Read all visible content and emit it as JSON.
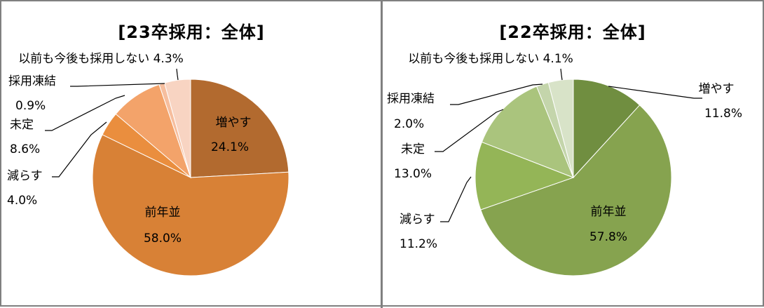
{
  "chart_data": [
    {
      "type": "pie",
      "title": "[23卒採用：全体]",
      "categories": [
        "増やす",
        "前年並",
        "減らす",
        "未定",
        "採用凍結",
        "以前も今後も採用しない"
      ],
      "values": [
        24.1,
        58.0,
        4.0,
        8.6,
        0.9,
        4.3
      ],
      "value_labels": [
        "24.1%",
        "58.0%",
        "4.0%",
        "8.6%",
        "0.9%",
        "4.3%"
      ],
      "colors": [
        "#B26A2F",
        "#D88136",
        "#EA8E3E",
        "#F3A36A",
        "#F6BE9E",
        "#F8D4C2"
      ],
      "legend": "none"
    },
    {
      "type": "pie",
      "title": "[22卒採用：全体]",
      "categories": [
        "増やす",
        "前年並",
        "減らす",
        "未定",
        "採用凍結",
        "以前も今後も採用しない"
      ],
      "values": [
        11.8,
        57.8,
        11.2,
        13.0,
        2.0,
        4.1
      ],
      "value_labels": [
        "11.8%",
        "57.8%",
        "11.2%",
        "13.0%",
        "2.0%",
        "4.1%"
      ],
      "colors": [
        "#708E40",
        "#86A34F",
        "#94B557",
        "#AAC47D",
        "#C4D5AB",
        "#D8E3C8"
      ],
      "legend": "none"
    }
  ]
}
